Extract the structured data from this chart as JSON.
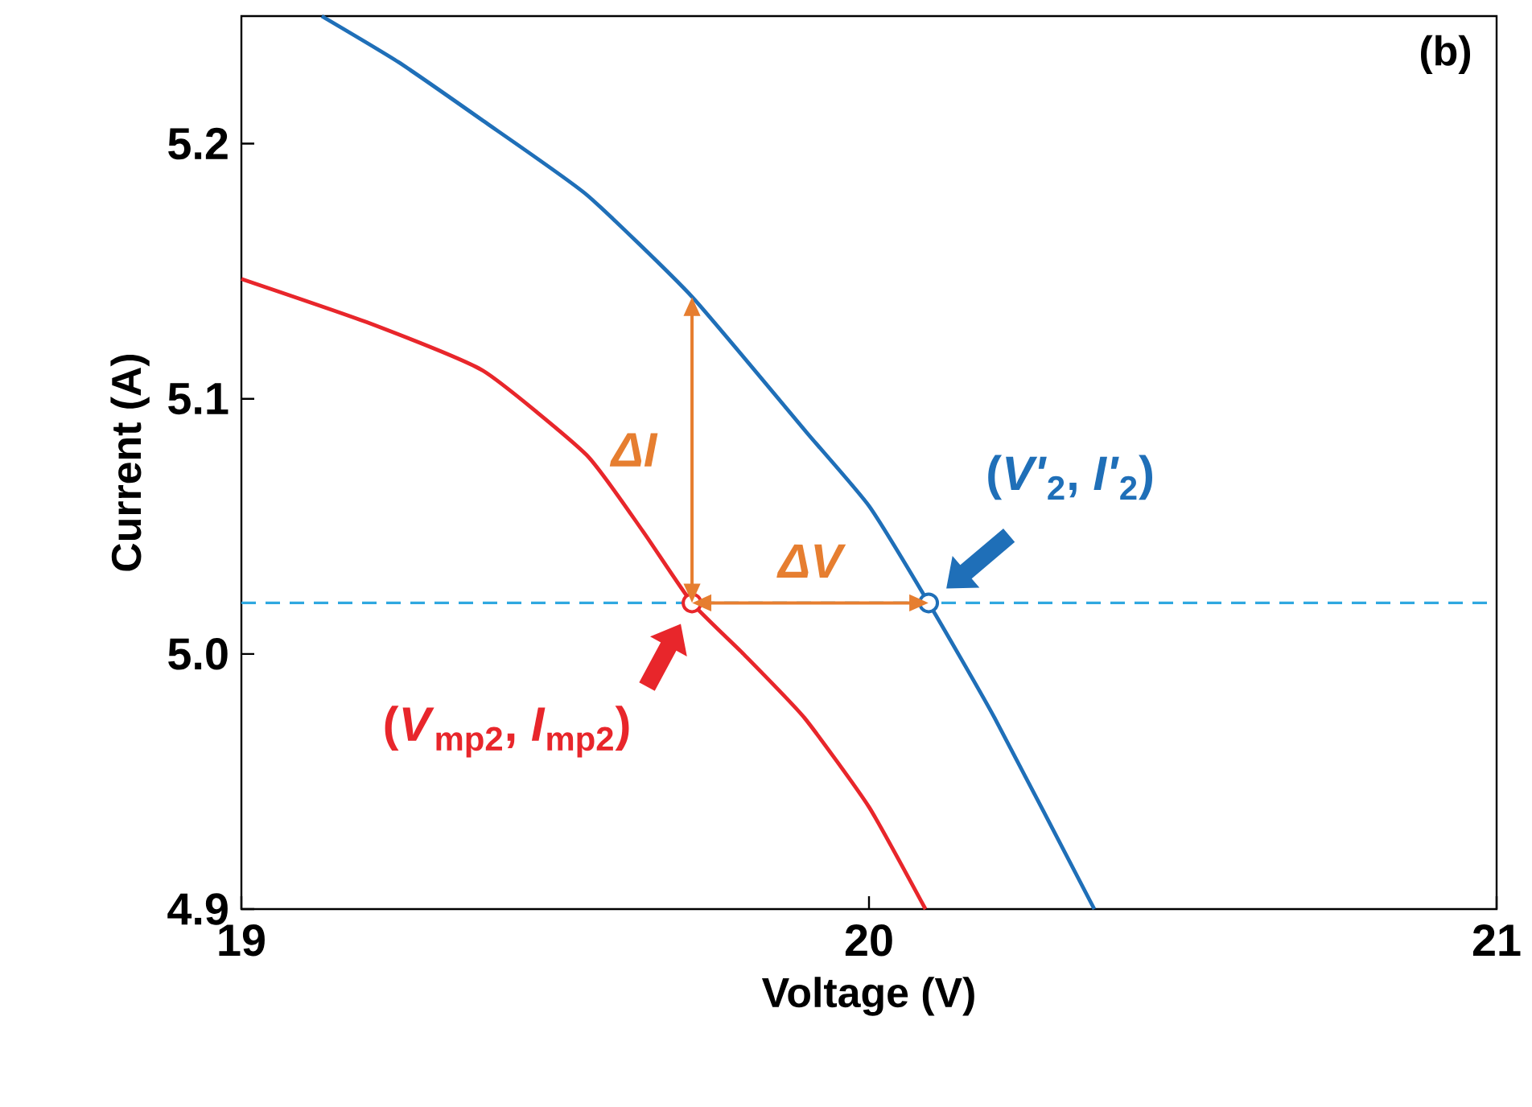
{
  "chart_data": {
    "type": "line",
    "xlabel": "Voltage (V)",
    "ylabel": "Current (A)",
    "xlim": [
      19,
      21
    ],
    "ylim": [
      4.9,
      5.25
    ],
    "xticks": [
      19,
      20,
      21
    ],
    "yticks": [
      4.9,
      {
        "value": 5.0,
        "label": "5.0"
      },
      5.1,
      5.2
    ],
    "series": [
      {
        "color": "#e8262b",
        "x": [
          19,
          19.2,
          19.385,
          19.55,
          19.64,
          19.718,
          19.8,
          19.897,
          20.0,
          20.09
        ],
        "values": [
          5.147,
          5.13,
          5.111,
          5.078,
          5.048,
          5.02,
          5.0,
          4.975,
          4.94,
          4.9
        ]
      },
      {
        "color": "#1f6fb8",
        "x": [
          19.128,
          19.25,
          19.385,
          19.55,
          19.718,
          19.9,
          20.0,
          20.095,
          20.2,
          20.359
        ],
        "values": [
          5.25,
          5.232,
          5.209,
          5.18,
          5.14,
          5.087,
          5.058,
          5.02,
          4.975,
          4.9
        ]
      },
      {
        "type": "scatter",
        "marker": "circle",
        "colors": [
          "#e8262b",
          "#1f6fb8"
        ],
        "x": [
          19.718,
          20.095
        ],
        "values": [
          5.02,
          5.02
        ]
      }
    ],
    "ref_lines": [
      {
        "axis": "y",
        "value": 5.02,
        "color": "#2fa8e0",
        "line_style": "dashed"
      }
    ],
    "annotations": [
      "(b)",
      "ΔI",
      "ΔV",
      {
        "text": "(*V*$_{mp2}$, *I*$_{mp2}$)",
        "x": 19.718,
        "y": 5.02
      },
      {
        "text": "(*V'*$_{2}$, *I'*$_{2}$)",
        "x": 20.095,
        "y": 5.02
      }
    ]
  }
}
